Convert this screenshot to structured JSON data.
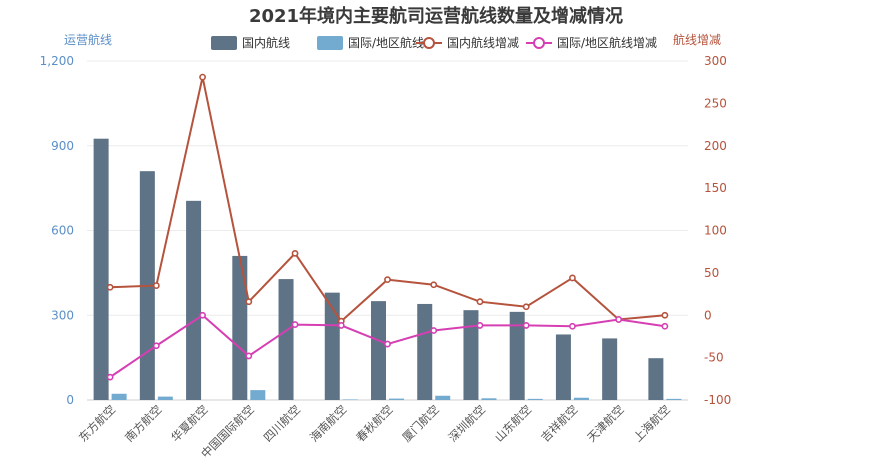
{
  "chart_data": {
    "type": "bar",
    "title": "2021年境内主要航司运营航线数量及增减情况",
    "categories": [
      "东方航空",
      "南方航空",
      "华夏航空",
      "中国国际航空",
      "四川航空",
      "海南航空",
      "春秋航空",
      "厦门航空",
      "深圳航空",
      "山东航空",
      "吉祥航空",
      "天津航空",
      "上海航空"
    ],
    "left_axis": {
      "title": "运营航线",
      "min": 0,
      "max": 1200,
      "ticks": [
        0,
        300,
        600,
        900,
        1200
      ],
      "tick_labels": [
        "0",
        "300",
        "600",
        "900",
        "1,200"
      ],
      "color": "#5b8fc7"
    },
    "right_axis": {
      "title": "航线增减",
      "min": -100,
      "max": 300,
      "ticks": [
        -100,
        -50,
        0,
        50,
        100,
        150,
        200,
        250,
        300
      ],
      "tick_labels": [
        "-100",
        "-50",
        "0",
        "50",
        "100",
        "150",
        "200",
        "250",
        "300"
      ],
      "color": "#b5533c"
    },
    "series": [
      {
        "name": "国内航线",
        "type": "bar",
        "axis": "left",
        "color": "#5e7386",
        "values": [
          925,
          810,
          705,
          510,
          428,
          380,
          350,
          340,
          318,
          312,
          232,
          218,
          148
        ]
      },
      {
        "name": "国际/地区航线",
        "type": "bar",
        "axis": "left",
        "color": "#72aad0",
        "values": [
          22,
          12,
          0,
          35,
          0,
          2,
          5,
          15,
          6,
          4,
          8,
          0,
          4
        ]
      },
      {
        "name": "国内航线增减",
        "type": "line",
        "axis": "right",
        "color": "#b5533c",
        "values": [
          33,
          35,
          281,
          16,
          73,
          -7,
          42,
          36,
          16,
          10,
          44,
          -5,
          0
        ]
      },
      {
        "name": "国际/地区航线增减",
        "type": "line",
        "axis": "right",
        "color": "#d63fb3",
        "values": [
          -73,
          -36,
          0,
          -48,
          -11,
          -12,
          -34,
          -18,
          -12,
          -12,
          -13,
          -5,
          -13
        ]
      }
    ],
    "grid": true,
    "legend_position": "top"
  }
}
